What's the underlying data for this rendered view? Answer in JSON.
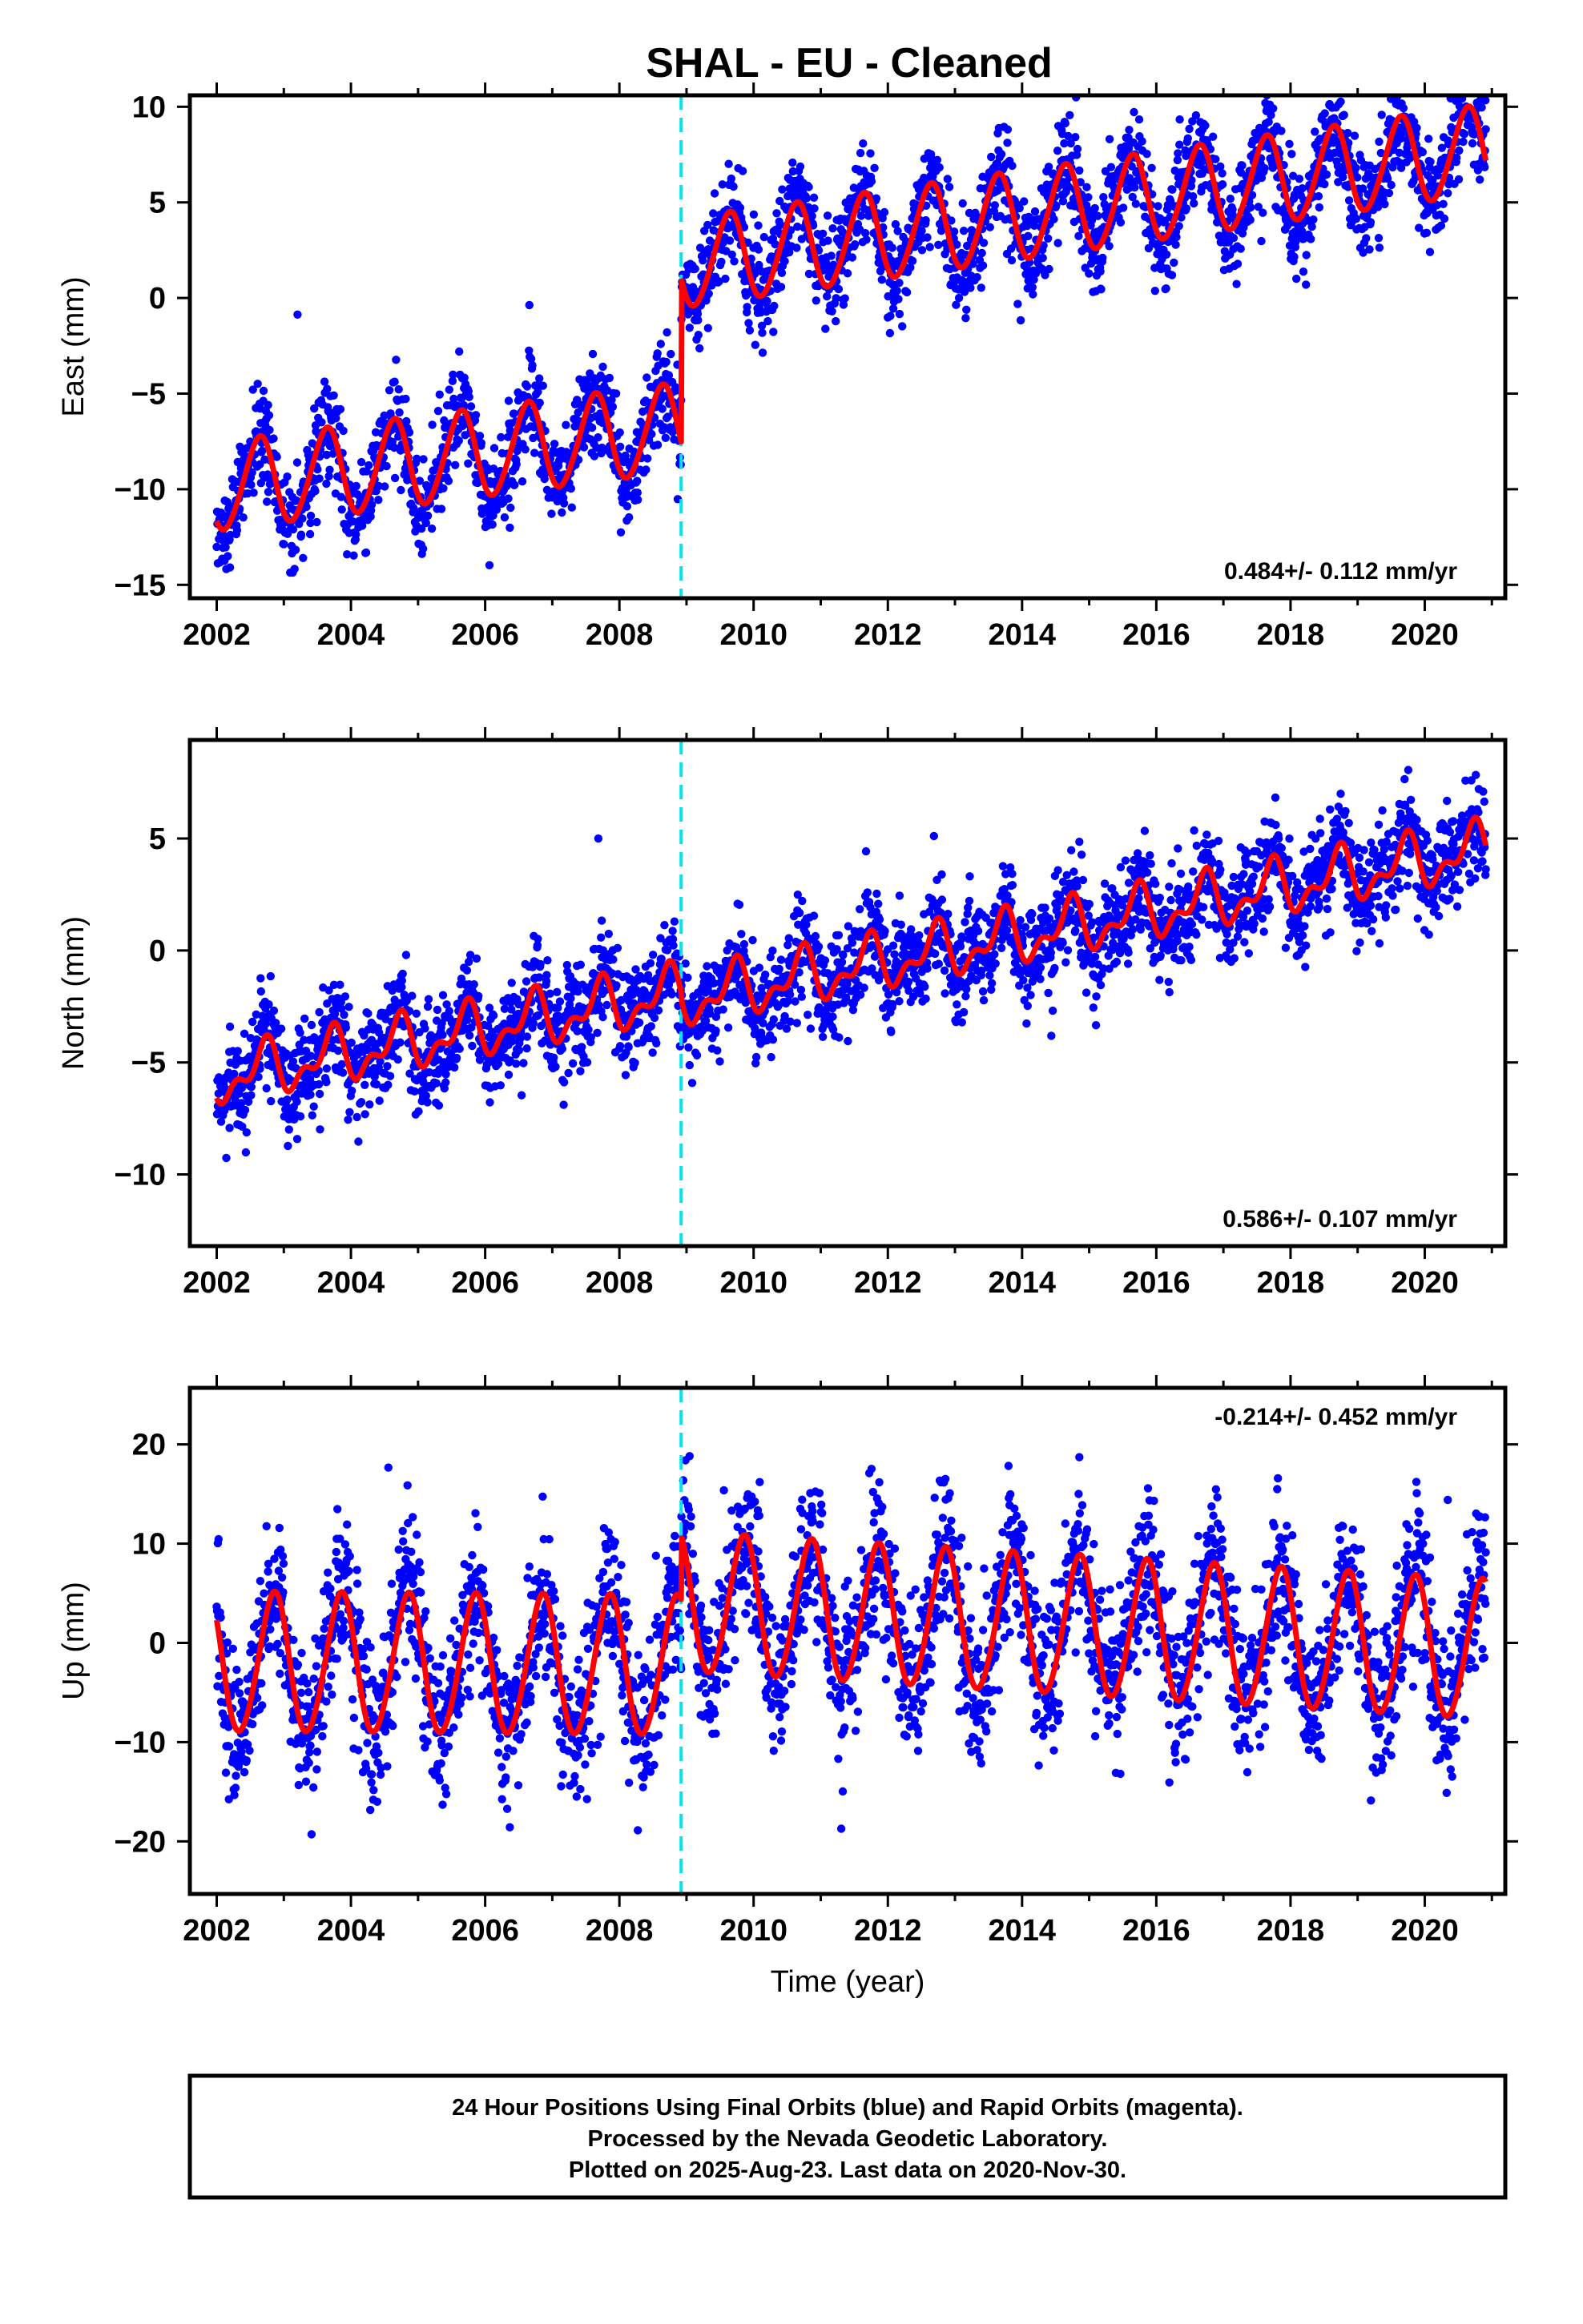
{
  "title": "SHAL  - EU - Cleaned",
  "footer": {
    "line1": "24 Hour Positions Using Final Orbits (blue) and Rapid Orbits (magenta).",
    "line2": "Processed by the Nevada Geodetic Laboratory.",
    "line3": "Plotted on 2025-Aug-23. Last data on 2020-Nov-30."
  },
  "colors": {
    "points": "#0000ff",
    "model": "#ff0000",
    "break_line": "#00e5ee",
    "frame": "#000000"
  },
  "chart_data": [
    {
      "type": "scatter",
      "ylabel": "East (mm)",
      "xlabel": "",
      "xlim": [
        2001.6,
        2021.2
      ],
      "ylim": [
        -15.7,
        10.6
      ],
      "yticks": [
        -15,
        -10,
        -5,
        0,
        5,
        10
      ],
      "xticks": [
        2002,
        2004,
        2006,
        2008,
        2010,
        2012,
        2014,
        2016,
        2018,
        2020
      ],
      "rate": "0.484+/- 0.112 mm/yr",
      "rate_position": "bottom-right",
      "break_year": 2008.92,
      "start_year": 2002.0,
      "end_year": 2020.91,
      "model": {
        "pre": {
          "offset": -6.3,
          "slope": 0.45
        },
        "post": {
          "offset": 2.3,
          "slope": 0.5
        },
        "ref_year": 2010.0,
        "annual_amp": 2.3,
        "annual_phase": 0.38,
        "semiannual_amp": 0.2,
        "semiannual_phase": 0.1,
        "scatter_sd": 1.3
      },
      "series": [
        {
          "name": "24 Hour Positions (blue)",
          "x_range": [
            2002.0,
            2020.91
          ]
        },
        {
          "name": "model fit (red)",
          "x_range": [
            2002.0,
            2020.91
          ]
        }
      ]
    },
    {
      "type": "scatter",
      "ylabel": "North (mm)",
      "xlabel": "",
      "xlim": [
        2001.6,
        2021.2
      ],
      "ylim": [
        -13.2,
        9.4
      ],
      "yticks": [
        -10,
        -5,
        0,
        5
      ],
      "xticks": [
        2002,
        2004,
        2006,
        2008,
        2010,
        2012,
        2014,
        2016,
        2018,
        2020
      ],
      "rate": "0.586+/- 0.107 mm/yr",
      "rate_position": "bottom-right",
      "break_year": 2008.92,
      "start_year": 2002.0,
      "end_year": 2020.91,
      "model": {
        "pre": {
          "offset": -1.3,
          "slope": 0.55
        },
        "post": {
          "offset": -1.6,
          "slope": 0.56
        },
        "ref_year": 2010.0,
        "annual_amp": 1.0,
        "annual_phase": 0.45,
        "semiannual_amp": 0.6,
        "semiannual_phase": 0.15,
        "scatter_sd": 1.1
      },
      "series": [
        {
          "name": "24 Hour Positions (blue)",
          "x_range": [
            2002.0,
            2020.91
          ]
        },
        {
          "name": "model fit (red)",
          "x_range": [
            2002.0,
            2020.91
          ]
        }
      ]
    },
    {
      "type": "scatter",
      "ylabel": "Up (mm)",
      "xlabel": "Time (year)",
      "xlim": [
        2001.6,
        2021.2
      ],
      "ylim": [
        -25.3,
        25.7
      ],
      "yticks": [
        -20,
        -10,
        0,
        10,
        20
      ],
      "xticks": [
        2002,
        2004,
        2006,
        2008,
        2010,
        2012,
        2014,
        2016,
        2018,
        2020
      ],
      "rate": "-0.214+/- 0.452 mm/yr",
      "rate_position": "top-right",
      "break_year": 2008.92,
      "start_year": 2002.0,
      "end_year": 2020.91,
      "model": {
        "pre": {
          "offset": -2.5,
          "slope": -0.05
        },
        "post": {
          "offset": 3.5,
          "slope": -0.4
        },
        "ref_year": 2010.0,
        "annual_amp": 7.0,
        "annual_phase": 0.6,
        "semiannual_amp": 0.5,
        "semiannual_phase": 0.3,
        "scatter_sd": 3.8
      },
      "series": [
        {
          "name": "24 Hour Positions (blue)",
          "x_range": [
            2002.0,
            2020.91
          ]
        },
        {
          "name": "model fit (red)",
          "x_range": [
            2002.0,
            2020.91
          ]
        }
      ]
    }
  ]
}
